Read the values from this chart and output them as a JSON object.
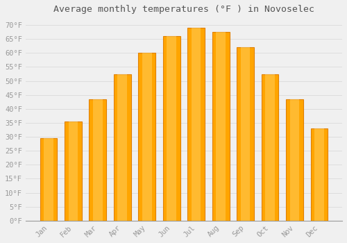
{
  "title": "Average monthly temperatures (°F ) in Novoselec",
  "months": [
    "Jan",
    "Feb",
    "Mar",
    "Apr",
    "May",
    "Jun",
    "Jul",
    "Aug",
    "Sep",
    "Oct",
    "Nov",
    "Dec"
  ],
  "values": [
    29.5,
    35.5,
    43.5,
    52.5,
    60.0,
    66.0,
    69.0,
    67.5,
    62.0,
    52.5,
    43.5,
    33.0
  ],
  "bar_color": "#FFA500",
  "bar_edge_color": "#E08000",
  "background_color": "#f0f0f0",
  "grid_color": "#dddddd",
  "text_color": "#999999",
  "title_color": "#555555",
  "ylim": [
    0,
    72
  ],
  "yticks": [
    0,
    5,
    10,
    15,
    20,
    25,
    30,
    35,
    40,
    45,
    50,
    55,
    60,
    65,
    70
  ],
  "ytick_labels": [
    "0°F",
    "5°F",
    "10°F",
    "15°F",
    "20°F",
    "25°F",
    "30°F",
    "35°F",
    "40°F",
    "45°F",
    "50°F",
    "55°F",
    "60°F",
    "65°F",
    "70°F"
  ],
  "title_fontsize": 9.5,
  "tick_fontsize": 7.5,
  "font_family": "monospace",
  "bar_width": 0.7
}
